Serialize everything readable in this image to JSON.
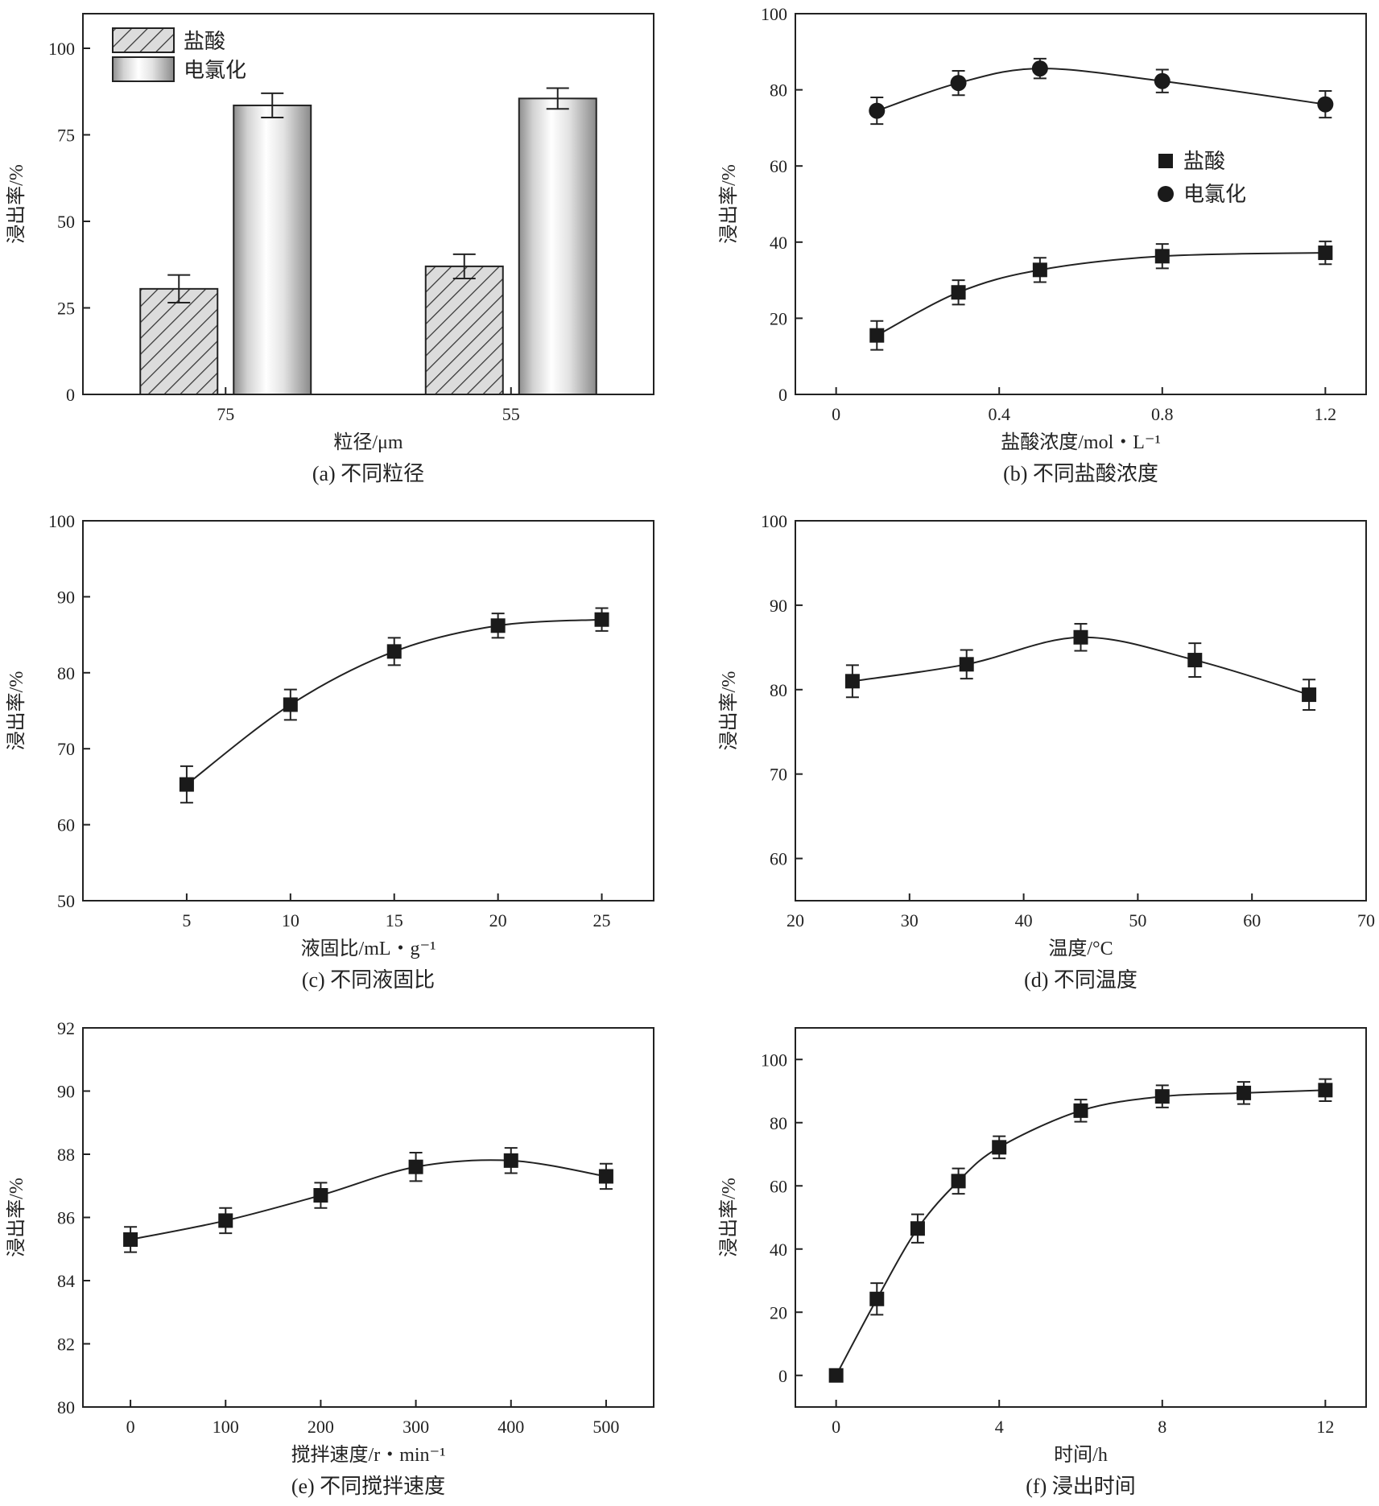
{
  "chart_data": [
    {
      "id": "a",
      "type": "bar",
      "caption": "(a) 不同粒径",
      "xlabel": "粒径/μm",
      "ylabel": "浸出率/%",
      "categories": [
        "75",
        "55"
      ],
      "ylim": [
        0,
        110
      ],
      "yticks": [
        0,
        25,
        50,
        75,
        100
      ],
      "series": [
        {
          "name": "盐酸",
          "values": [
            30.5,
            37.0
          ],
          "errors": [
            4.0,
            3.5
          ]
        },
        {
          "name": "电氯化",
          "values": [
            83.5,
            85.5
          ],
          "errors": [
            3.5,
            3.0
          ]
        }
      ]
    },
    {
      "id": "b",
      "type": "line",
      "caption": "(b) 不同盐酸浓度",
      "xlabel": "盐酸浓度/mol・L⁻¹",
      "ylabel": "浸出率/%",
      "xlim": [
        -0.1,
        1.3
      ],
      "ylim": [
        0,
        100
      ],
      "xticks": [
        0,
        0.4,
        0.8,
        1.2
      ],
      "xtick_labels": [
        "0",
        "0.4",
        "0.8",
        "1.2"
      ],
      "yticks": [
        0,
        20,
        40,
        60,
        80,
        100
      ],
      "series": [
        {
          "name": "盐酸",
          "marker": "square",
          "x": [
            0.1,
            0.3,
            0.5,
            0.8,
            1.2
          ],
          "values": [
            15.5,
            26.8,
            32.7,
            36.3,
            37.2
          ],
          "errors": [
            3.8,
            3.2,
            3.2,
            3.2,
            3.0
          ]
        },
        {
          "name": "电氯化",
          "marker": "circle",
          "x": [
            0.1,
            0.3,
            0.5,
            0.8,
            1.2
          ],
          "values": [
            74.5,
            81.8,
            85.6,
            82.3,
            76.2
          ],
          "errors": [
            3.5,
            3.2,
            2.6,
            3.0,
            3.5
          ]
        }
      ]
    },
    {
      "id": "c",
      "type": "line",
      "caption": "(c) 不同液固比",
      "xlabel": "液固比/mL・g⁻¹",
      "ylabel": "浸出率/%",
      "xlim": [
        0,
        27.5
      ],
      "ylim": [
        50,
        100
      ],
      "xticks": [
        5,
        10,
        15,
        20,
        25
      ],
      "xtick_labels": [
        "5",
        "10",
        "15",
        "20",
        "25"
      ],
      "yticks": [
        50,
        60,
        70,
        80,
        90,
        100
      ],
      "series": [
        {
          "name": "浸出率",
          "marker": "square",
          "x": [
            5,
            10,
            15,
            20,
            25
          ],
          "values": [
            65.3,
            75.8,
            82.8,
            86.2,
            87.0
          ],
          "errors": [
            2.4,
            2.0,
            1.8,
            1.6,
            1.5
          ]
        }
      ]
    },
    {
      "id": "d",
      "type": "line",
      "caption": "(d) 不同温度",
      "xlabel": "温度/°C",
      "ylabel": "浸出率/%",
      "xlim": [
        20,
        70
      ],
      "ylim": [
        55,
        100
      ],
      "xticks": [
        20,
        30,
        40,
        50,
        60,
        70
      ],
      "xtick_labels": [
        "20",
        "30",
        "40",
        "50",
        "60",
        "70"
      ],
      "yticks": [
        60,
        70,
        80,
        90,
        100
      ],
      "series": [
        {
          "name": "浸出率",
          "marker": "square",
          "x": [
            25,
            35,
            45,
            55,
            65
          ],
          "values": [
            81.0,
            83.0,
            86.2,
            83.5,
            79.4
          ],
          "errors": [
            1.9,
            1.7,
            1.6,
            2.0,
            1.8
          ]
        }
      ]
    },
    {
      "id": "e",
      "type": "line",
      "caption": "(e) 不同搅拌速度",
      "xlabel": "搅拌速度/r・min⁻¹",
      "ylabel": "浸出率/%",
      "xlim": [
        -50,
        550
      ],
      "ylim": [
        80,
        92
      ],
      "xticks": [
        0,
        100,
        200,
        300,
        400,
        500
      ],
      "xtick_labels": [
        "0",
        "100",
        "200",
        "300",
        "400",
        "500"
      ],
      "yticks": [
        80,
        82,
        84,
        86,
        88,
        90,
        92
      ],
      "series": [
        {
          "name": "浸出率",
          "marker": "square",
          "x": [
            0,
            100,
            200,
            300,
            400,
            500
          ],
          "values": [
            85.3,
            85.9,
            86.7,
            87.6,
            87.8,
            87.3
          ],
          "errors": [
            0.4,
            0.4,
            0.4,
            0.45,
            0.4,
            0.4
          ]
        }
      ]
    },
    {
      "id": "f",
      "type": "line",
      "caption": "(f) 浸出时间",
      "xlabel": "时间/h",
      "ylabel": "浸出率/%",
      "xlim": [
        -1,
        13
      ],
      "ylim": [
        -10,
        110
      ],
      "xticks": [
        0,
        4,
        8,
        12
      ],
      "xtick_labels": [
        "0",
        "4",
        "8",
        "12"
      ],
      "yticks": [
        0,
        20,
        40,
        60,
        80,
        100
      ],
      "series": [
        {
          "name": "浸出率",
          "marker": "square",
          "x": [
            0,
            1,
            2,
            3,
            4,
            6,
            8,
            10,
            12
          ],
          "values": [
            0,
            24.2,
            46.5,
            61.5,
            72.2,
            83.8,
            88.3,
            89.4,
            90.3
          ],
          "errors": [
            0,
            5.0,
            4.5,
            4.0,
            3.5,
            3.5,
            3.5,
            3.5,
            3.5
          ]
        }
      ]
    }
  ]
}
